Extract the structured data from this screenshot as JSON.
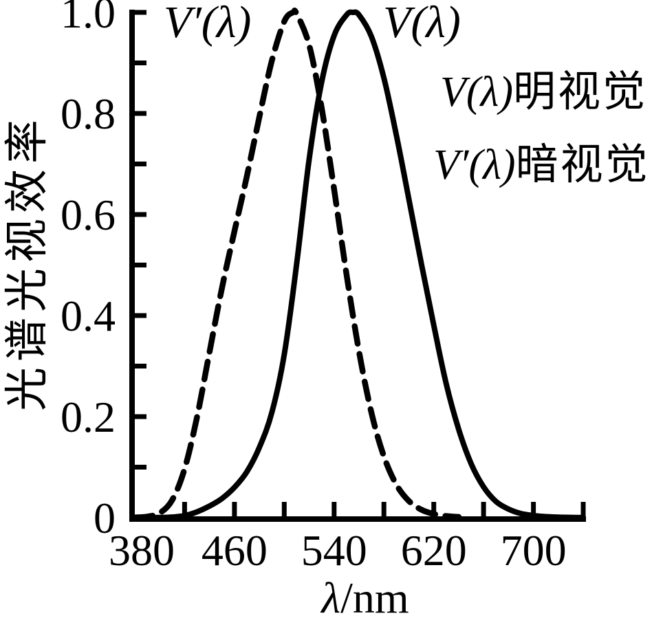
{
  "figure": {
    "y_axis_title": "光谱光视效率",
    "x_axis_title_symbol": "λ",
    "x_axis_title_rest": "/nm",
    "curve_labels": {
      "scotopic": "V′(λ)",
      "photopic": "V(λ)"
    },
    "legend": {
      "line1_symbol": "V(λ)",
      "line1_text": "明视觉",
      "line2_symbol": "V′(λ)",
      "line2_text": "暗视觉"
    }
  },
  "chart_data": {
    "type": "line",
    "title": "",
    "xlabel": "λ/nm",
    "ylabel": "光谱光视效率",
    "xlim": [
      380,
      740
    ],
    "ylim": [
      0,
      1.0
    ],
    "grid": false,
    "legend_position": "upper right (text annotations)",
    "x_major_ticks": [
      380,
      460,
      540,
      620,
      700
    ],
    "x_major_tick_labels": [
      "380",
      "460",
      "540",
      "620",
      "700"
    ],
    "x_minor_tick_step": 40,
    "y_major_ticks": [
      0,
      0.2,
      0.4,
      0.6,
      0.8,
      1.0
    ],
    "y_major_tick_labels": [
      "0",
      "0.2",
      "0.4",
      "0.6",
      "0.8",
      "1.0"
    ],
    "y_minor_tick_step": 0.1,
    "colors": {
      "line": "#000000",
      "background": "#ffffff"
    },
    "series": [
      {
        "name": "V(λ) 明视觉 (photopic luminous efficiency)",
        "style": "solid",
        "peak_nm": 555,
        "x": [
          380,
          390,
          400,
          410,
          420,
          430,
          440,
          450,
          460,
          470,
          480,
          490,
          500,
          510,
          520,
          530,
          540,
          550,
          555,
          560,
          570,
          580,
          590,
          600,
          610,
          620,
          630,
          640,
          650,
          660,
          670,
          680,
          690,
          700,
          710,
          720,
          730,
          740
        ],
        "values": [
          0.0,
          0.0001,
          0.0004,
          0.0012,
          0.004,
          0.0116,
          0.023,
          0.038,
          0.06,
          0.091,
          0.139,
          0.208,
          0.323,
          0.503,
          0.71,
          0.862,
          0.954,
          0.995,
          1.0,
          0.995,
          0.952,
          0.87,
          0.757,
          0.631,
          0.503,
          0.381,
          0.265,
          0.175,
          0.107,
          0.061,
          0.032,
          0.017,
          0.0082,
          0.0041,
          0.0021,
          0.001,
          0.0005,
          0.0002
        ]
      },
      {
        "name": "V′(λ) 暗视觉 (scotopic luminous efficiency)",
        "style": "dashed",
        "peak_nm": 507,
        "x": [
          380,
          390,
          400,
          410,
          420,
          430,
          440,
          450,
          460,
          470,
          480,
          490,
          500,
          507,
          510,
          520,
          530,
          540,
          550,
          560,
          570,
          580,
          590,
          600,
          610,
          620,
          630,
          640
        ],
        "values": [
          0.0006,
          0.0022,
          0.0093,
          0.0348,
          0.0966,
          0.1998,
          0.3281,
          0.455,
          0.567,
          0.676,
          0.793,
          0.904,
          0.982,
          1.0,
          0.997,
          0.935,
          0.811,
          0.65,
          0.481,
          0.3289,
          0.2076,
          0.1212,
          0.0655,
          0.0332,
          0.0159,
          0.0074,
          0.0033,
          0.0015
        ]
      }
    ]
  }
}
